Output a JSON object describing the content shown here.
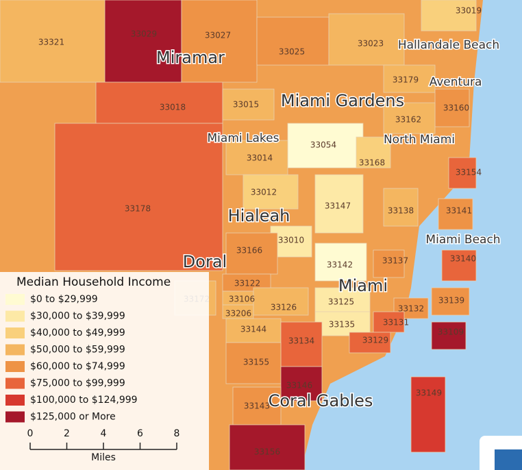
{
  "map": {
    "legend": {
      "title": "Median Household Income",
      "items": [
        {
          "label": "$0 to $29,999",
          "color": "#fffbd2"
        },
        {
          "label": "$30,000 to $39,999",
          "color": "#fde9a6"
        },
        {
          "label": "$40,000 to $49,999",
          "color": "#f9d07c"
        },
        {
          "label": "$50,000 to $59,999",
          "color": "#f4b660"
        },
        {
          "label": "$60,000 to $74,999",
          "color": "#ee9346"
        },
        {
          "label": "$75,000 to $99,999",
          "color": "#e8653b"
        },
        {
          "label": "$100,000 to $124,999",
          "color": "#d7392f"
        },
        {
          "label": "$125,000 or More",
          "color": "#a5182b"
        }
      ]
    },
    "zips": [
      {
        "label": "33019",
        "bracket": 2
      },
      {
        "label": "33321",
        "bracket": 3
      },
      {
        "label": "33029",
        "bracket": 7
      },
      {
        "label": "33027",
        "bracket": 4
      },
      {
        "label": "33025",
        "bracket": 4
      },
      {
        "label": "33023",
        "bracket": 3
      },
      {
        "label": "33179",
        "bracket": 3
      },
      {
        "label": "33018",
        "bracket": 5
      },
      {
        "label": "33015",
        "bracket": 3
      },
      {
        "label": "33160",
        "bracket": 4
      },
      {
        "label": "33162",
        "bracket": 3
      },
      {
        "label": "33054",
        "bracket": 0
      },
      {
        "label": "33014",
        "bracket": 3
      },
      {
        "label": "33168",
        "bracket": 2
      },
      {
        "label": "33154",
        "bracket": 5
      },
      {
        "label": "33012",
        "bracket": 2
      },
      {
        "label": "33147",
        "bracket": 1
      },
      {
        "label": "33138",
        "bracket": 3
      },
      {
        "label": "33141",
        "bracket": 4
      },
      {
        "label": "33178",
        "bracket": 5
      },
      {
        "label": "33010",
        "bracket": 1
      },
      {
        "label": "33166",
        "bracket": 4
      },
      {
        "label": "33142",
        "bracket": 0
      },
      {
        "label": "33137",
        "bracket": 4
      },
      {
        "label": "33140",
        "bracket": 5
      },
      {
        "label": "33122",
        "bracket": 4
      },
      {
        "label": "33106",
        "bracket": 3
      },
      {
        "label": "33206",
        "bracket": 3
      },
      {
        "label": "33126",
        "bracket": 3
      },
      {
        "label": "33125",
        "bracket": 1
      },
      {
        "label": "33139",
        "bracket": 4
      },
      {
        "label": "33132",
        "bracket": 4
      },
      {
        "label": "33172",
        "bracket": 3
      },
      {
        "label": "33144",
        "bracket": 3
      },
      {
        "label": "33135",
        "bracket": 1
      },
      {
        "label": "33131",
        "bracket": 5
      },
      {
        "label": "33134",
        "bracket": 5
      },
      {
        "label": "33129",
        "bracket": 5
      },
      {
        "label": "33109",
        "bracket": 7
      },
      {
        "label": "33155",
        "bracket": 4
      },
      {
        "label": "33146",
        "bracket": 7
      },
      {
        "label": "33143",
        "bracket": 4
      },
      {
        "label": "33149",
        "bracket": 6
      },
      {
        "label": "33156",
        "bracket": 7
      }
    ],
    "cities": [
      "Miramar",
      "Miami Gardens",
      "Hallandale Beach",
      "Aventura",
      "Miami Lakes",
      "North Miami",
      "Hialeah",
      "Miami Beach",
      "Doral",
      "Miami",
      "Coral Gables"
    ],
    "scale": {
      "ticks": [
        0,
        2,
        4,
        6,
        8
      ],
      "unit": "Miles"
    }
  }
}
